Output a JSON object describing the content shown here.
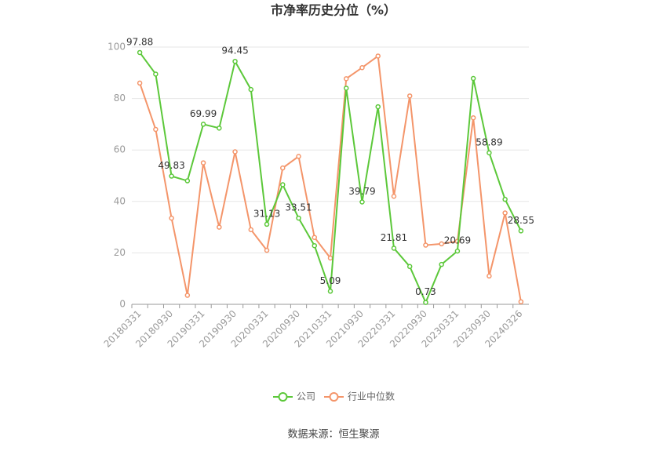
{
  "chart_data": {
    "type": "line",
    "title": "市净率历史分位（%）",
    "categories": [
      "20180331",
      null,
      "20180930",
      null,
      "20190331",
      null,
      "20190930",
      null,
      "20200331",
      null,
      "20200930",
      null,
      "20210331",
      null,
      "20210930",
      null,
      "20220331",
      null,
      "20220930",
      null,
      "20230331",
      null,
      "20230930",
      null,
      "20240326"
    ],
    "series": [
      {
        "name": "公司",
        "color": "#5cc83a",
        "values": [
          97.88,
          89.5,
          49.83,
          48,
          69.99,
          68.5,
          94.45,
          83.5,
          31.13,
          46.5,
          33.51,
          22.8,
          5.09,
          84,
          39.79,
          76.8,
          21.81,
          14.7,
          0.73,
          15.5,
          20.69,
          87.8,
          58.89,
          40.8,
          28.55
        ],
        "value_labels": [
          "97.88",
          null,
          "49.83",
          null,
          "69.99",
          null,
          "94.45",
          null,
          "31.13",
          null,
          "33.51",
          null,
          "5.09",
          null,
          "39.79",
          null,
          "21.81",
          null,
          "0.73",
          null,
          "20.69",
          null,
          "58.89",
          null,
          "28.55"
        ]
      },
      {
        "name": "行业中位数",
        "color": "#f4956a",
        "values": [
          86,
          68,
          33.5,
          3.5,
          55,
          30,
          59.3,
          29,
          21,
          53,
          57.5,
          26,
          18,
          87.7,
          92,
          96.5,
          42,
          81,
          23,
          23.5,
          24.5,
          72.5,
          11,
          35.5,
          1
        ]
      }
    ],
    "ylim": [
      0,
      100
    ],
    "yticks": [
      0,
      20,
      40,
      60,
      80,
      100
    ],
    "grid": true,
    "source": "数据来源：恒生聚源"
  }
}
